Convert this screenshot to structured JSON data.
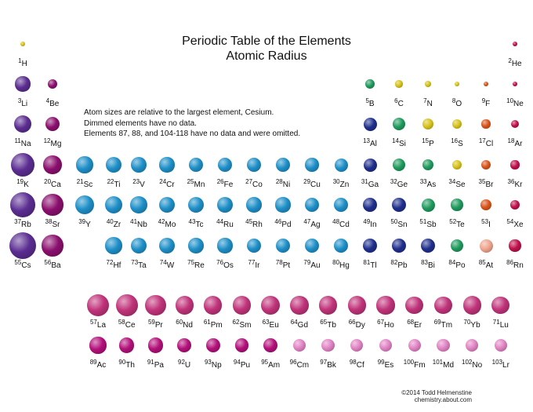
{
  "title": {
    "line1": "Periodic Table of the Elements",
    "line2": "Atomic Radius"
  },
  "notes": [
    "Atom sizes are relative to the largest element, Cesium.",
    "Dimmed elements have no data.",
    "Elements 87, 88, and 104-118 have no data and were omitted."
  ],
  "credit": {
    "line1": "©2014 Todd Helmenstine",
    "line2": "chemistry.about.com"
  },
  "colors": {
    "alkali": "#5b2d91",
    "alkaline_earth": "#8b0f6e",
    "transition": "#1e8fc8",
    "post_transition": "#1f2f8c",
    "metalloid": "#1f9a5c",
    "nonmetal": "#d6c21a",
    "halogen": "#d9541a",
    "noble_gas": "#c0104a",
    "lanthanide": "#c0337a",
    "actinide": "#b3107a",
    "actinide_dim": "#e183c4",
    "at_dim": "#eea48c"
  },
  "elements": [
    {
      "n": "1",
      "s": "H",
      "radius_rel": 0.17,
      "group": "nonmetal"
    },
    {
      "n": "2",
      "s": "He",
      "radius_rel": 0.12,
      "group": "noble_gas"
    },
    {
      "n": "3",
      "s": "Li",
      "radius_rel": 0.56,
      "group": "alkali"
    },
    {
      "n": "4",
      "s": "Be",
      "radius_rel": 0.38,
      "group": "alkaline_earth"
    },
    {
      "n": "5",
      "s": "B",
      "radius_rel": 0.35,
      "group": "metalloid"
    },
    {
      "n": "6",
      "s": "C",
      "radius_rel": 0.27,
      "group": "nonmetal"
    },
    {
      "n": "7",
      "s": "N",
      "radius_rel": 0.23,
      "group": "nonmetal"
    },
    {
      "n": "8",
      "s": "O",
      "radius_rel": 0.2,
      "group": "nonmetal"
    },
    {
      "n": "9",
      "s": "F",
      "radius_rel": 0.18,
      "group": "halogen"
    },
    {
      "n": "10",
      "s": "Ne",
      "radius_rel": 0.16,
      "group": "noble_gas"
    },
    {
      "n": "11",
      "s": "Na",
      "radius_rel": 0.65,
      "group": "alkali"
    },
    {
      "n": "12",
      "s": "Mg",
      "radius_rel": 0.55,
      "group": "alkaline_earth"
    },
    {
      "n": "13",
      "s": "Al",
      "radius_rel": 0.5,
      "group": "post_transition"
    },
    {
      "n": "14",
      "s": "Si",
      "radius_rel": 0.47,
      "group": "metalloid"
    },
    {
      "n": "15",
      "s": "P",
      "radius_rel": 0.42,
      "group": "nonmetal"
    },
    {
      "n": "16",
      "s": "S",
      "radius_rel": 0.37,
      "group": "nonmetal"
    },
    {
      "n": "17",
      "s": "Cl",
      "radius_rel": 0.33,
      "group": "halogen"
    },
    {
      "n": "18",
      "s": "Ar",
      "radius_rel": 0.31,
      "group": "noble_gas"
    },
    {
      "n": "19",
      "s": "K",
      "radius_rel": 0.87,
      "group": "alkali"
    },
    {
      "n": "20",
      "s": "Ca",
      "radius_rel": 0.69,
      "group": "alkaline_earth"
    },
    {
      "n": "21",
      "s": "Sc",
      "radius_rel": 0.62,
      "group": "transition"
    },
    {
      "n": "22",
      "s": "Ti",
      "radius_rel": 0.6,
      "group": "transition"
    },
    {
      "n": "23",
      "s": "V",
      "radius_rel": 0.58,
      "group": "transition"
    },
    {
      "n": "24",
      "s": "Cr",
      "radius_rel": 0.56,
      "group": "transition"
    },
    {
      "n": "25",
      "s": "Mn",
      "radius_rel": 0.55,
      "group": "transition"
    },
    {
      "n": "26",
      "s": "Fe",
      "radius_rel": 0.54,
      "group": "transition"
    },
    {
      "n": "27",
      "s": "Co",
      "radius_rel": 0.53,
      "group": "transition"
    },
    {
      "n": "28",
      "s": "Ni",
      "radius_rel": 0.52,
      "group": "transition"
    },
    {
      "n": "29",
      "s": "Cu",
      "radius_rel": 0.51,
      "group": "transition"
    },
    {
      "n": "30",
      "s": "Zn",
      "radius_rel": 0.5,
      "group": "transition"
    },
    {
      "n": "31",
      "s": "Ga",
      "radius_rel": 0.5,
      "group": "post_transition"
    },
    {
      "n": "32",
      "s": "Ge",
      "radius_rel": 0.47,
      "group": "metalloid"
    },
    {
      "n": "33",
      "s": "As",
      "radius_rel": 0.43,
      "group": "metalloid"
    },
    {
      "n": "34",
      "s": "Se",
      "radius_rel": 0.38,
      "group": "nonmetal"
    },
    {
      "n": "35",
      "s": "Br",
      "radius_rel": 0.36,
      "group": "halogen"
    },
    {
      "n": "36",
      "s": "Kr",
      "radius_rel": 0.33,
      "group": "noble_gas"
    },
    {
      "n": "37",
      "s": "Rb",
      "radius_rel": 0.93,
      "group": "alkali"
    },
    {
      "n": "38",
      "s": "Sr",
      "radius_rel": 0.8,
      "group": "alkaline_earth"
    },
    {
      "n": "39",
      "s": "Y",
      "radius_rel": 0.72,
      "group": "transition"
    },
    {
      "n": "40",
      "s": "Zr",
      "radius_rel": 0.66,
      "group": "transition"
    },
    {
      "n": "41",
      "s": "Nb",
      "radius_rel": 0.63,
      "group": "transition"
    },
    {
      "n": "42",
      "s": "Mo",
      "radius_rel": 0.61,
      "group": "transition"
    },
    {
      "n": "43",
      "s": "Tc",
      "radius_rel": 0.6,
      "group": "transition"
    },
    {
      "n": "44",
      "s": "Ru",
      "radius_rel": 0.58,
      "group": "transition"
    },
    {
      "n": "45",
      "s": "Rh",
      "radius_rel": 0.57,
      "group": "transition"
    },
    {
      "n": "46",
      "s": "Pd",
      "radius_rel": 0.56,
      "group": "transition"
    },
    {
      "n": "47",
      "s": "Ag",
      "radius_rel": 0.55,
      "group": "transition"
    },
    {
      "n": "48",
      "s": "Cd",
      "radius_rel": 0.54,
      "group": "transition"
    },
    {
      "n": "49",
      "s": "In",
      "radius_rel": 0.54,
      "group": "post_transition"
    },
    {
      "n": "50",
      "s": "Sn",
      "radius_rel": 0.54,
      "group": "post_transition"
    },
    {
      "n": "51",
      "s": "Sb",
      "radius_rel": 0.5,
      "group": "metalloid"
    },
    {
      "n": "52",
      "s": "Te",
      "radius_rel": 0.46,
      "group": "metalloid"
    },
    {
      "n": "53",
      "s": "I",
      "radius_rel": 0.44,
      "group": "halogen"
    },
    {
      "n": "54",
      "s": "Xe",
      "radius_rel": 0.38,
      "group": "noble_gas"
    },
    {
      "n": "55",
      "s": "Cs",
      "radius_rel": 1.0,
      "group": "alkali"
    },
    {
      "n": "56",
      "s": "Ba",
      "radius_rel": 0.8,
      "group": "alkaline_earth"
    },
    {
      "n": "72",
      "s": "Hf",
      "radius_rel": 0.62,
      "group": "transition"
    },
    {
      "n": "73",
      "s": "Ta",
      "radius_rel": 0.6,
      "group": "transition"
    },
    {
      "n": "74",
      "s": "W",
      "radius_rel": 0.58,
      "group": "transition"
    },
    {
      "n": "75",
      "s": "Re",
      "radius_rel": 0.57,
      "group": "transition"
    },
    {
      "n": "76",
      "s": "Os",
      "radius_rel": 0.56,
      "group": "transition"
    },
    {
      "n": "77",
      "s": "Ir",
      "radius_rel": 0.55,
      "group": "transition"
    },
    {
      "n": "78",
      "s": "Pt",
      "radius_rel": 0.55,
      "group": "transition"
    },
    {
      "n": "79",
      "s": "Au",
      "radius_rel": 0.55,
      "group": "transition"
    },
    {
      "n": "80",
      "s": "Hg",
      "radius_rel": 0.54,
      "group": "transition"
    },
    {
      "n": "81",
      "s": "Tl",
      "radius_rel": 0.54,
      "group": "post_transition"
    },
    {
      "n": "82",
      "s": "Pb",
      "radius_rel": 0.55,
      "group": "post_transition"
    },
    {
      "n": "83",
      "s": "Bi",
      "radius_rel": 0.54,
      "group": "post_transition"
    },
    {
      "n": "84",
      "s": "Po",
      "radius_rel": 0.48,
      "group": "metalloid"
    },
    {
      "n": "85",
      "s": "At",
      "radius_rel": 0.5,
      "group": "at_dim"
    },
    {
      "n": "86",
      "s": "Rn",
      "radius_rel": 0.45,
      "group": "noble_gas"
    },
    {
      "n": "57",
      "s": "La",
      "radius_rel": 0.83,
      "group": "lanthanide"
    },
    {
      "n": "58",
      "s": "Ce",
      "radius_rel": 0.82,
      "group": "lanthanide"
    },
    {
      "n": "59",
      "s": "Pr",
      "radius_rel": 0.78,
      "group": "lanthanide"
    },
    {
      "n": "60",
      "s": "Nd",
      "radius_rel": 0.68,
      "group": "lanthanide"
    },
    {
      "n": "61",
      "s": "Pm",
      "radius_rel": 0.68,
      "group": "lanthanide"
    },
    {
      "n": "62",
      "s": "Sm",
      "radius_rel": 0.7,
      "group": "lanthanide"
    },
    {
      "n": "63",
      "s": "Eu",
      "radius_rel": 0.7,
      "group": "lanthanide"
    },
    {
      "n": "64",
      "s": "Gd",
      "radius_rel": 0.69,
      "group": "lanthanide"
    },
    {
      "n": "65",
      "s": "Tb",
      "radius_rel": 0.68,
      "group": "lanthanide"
    },
    {
      "n": "66",
      "s": "Dy",
      "radius_rel": 0.68,
      "group": "lanthanide"
    },
    {
      "n": "67",
      "s": "Ho",
      "radius_rel": 0.68,
      "group": "lanthanide"
    },
    {
      "n": "68",
      "s": "Er",
      "radius_rel": 0.67,
      "group": "lanthanide"
    },
    {
      "n": "69",
      "s": "Tm",
      "radius_rel": 0.67,
      "group": "lanthanide"
    },
    {
      "n": "70",
      "s": "Yb",
      "radius_rel": 0.68,
      "group": "lanthanide"
    },
    {
      "n": "71",
      "s": "Lu",
      "radius_rel": 0.67,
      "group": "lanthanide"
    },
    {
      "n": "89",
      "s": "Ac",
      "radius_rel": 0.62,
      "group": "actinide"
    },
    {
      "n": "90",
      "s": "Th",
      "radius_rel": 0.57,
      "group": "actinide"
    },
    {
      "n": "91",
      "s": "Pa",
      "radius_rel": 0.56,
      "group": "actinide"
    },
    {
      "n": "92",
      "s": "U",
      "radius_rel": 0.53,
      "group": "actinide"
    },
    {
      "n": "93",
      "s": "Np",
      "radius_rel": 0.53,
      "group": "actinide"
    },
    {
      "n": "94",
      "s": "Pu",
      "radius_rel": 0.52,
      "group": "actinide"
    },
    {
      "n": "95",
      "s": "Am",
      "radius_rel": 0.52,
      "group": "actinide"
    },
    {
      "n": "96",
      "s": "Cm",
      "radius_rel": 0.48,
      "group": "actinide_dim"
    },
    {
      "n": "97",
      "s": "Bk",
      "radius_rel": 0.48,
      "group": "actinide_dim"
    },
    {
      "n": "98",
      "s": "Cf",
      "radius_rel": 0.48,
      "group": "actinide_dim"
    },
    {
      "n": "99",
      "s": "Es",
      "radius_rel": 0.48,
      "group": "actinide_dim"
    },
    {
      "n": "100",
      "s": "Fm",
      "radius_rel": 0.48,
      "group": "actinide_dim"
    },
    {
      "n": "101",
      "s": "Md",
      "radius_rel": 0.48,
      "group": "actinide_dim"
    },
    {
      "n": "102",
      "s": "No",
      "radius_rel": 0.48,
      "group": "actinide_dim"
    },
    {
      "n": "103",
      "s": "Lr",
      "radius_rel": 0.48,
      "group": "actinide_dim"
    }
  ]
}
